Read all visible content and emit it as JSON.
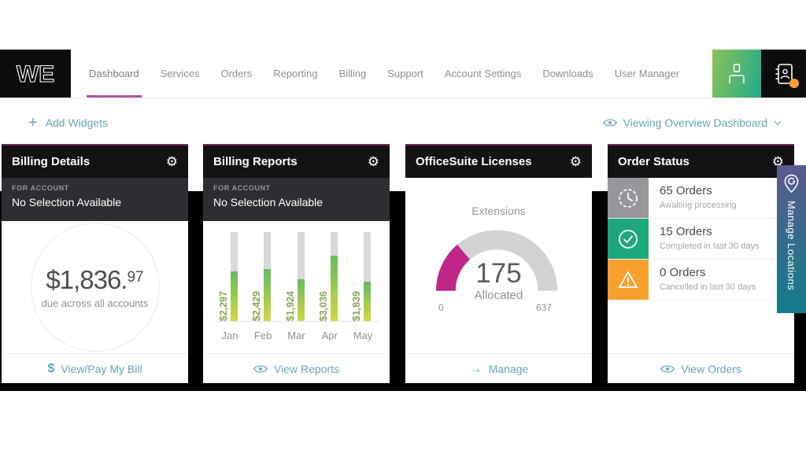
{
  "nav": {
    "logo_text": "WE",
    "items": [
      {
        "label": "Dashboard",
        "active": true
      },
      {
        "label": "Services"
      },
      {
        "label": "Orders"
      },
      {
        "label": "Reporting"
      },
      {
        "label": "Billing"
      },
      {
        "label": "Support"
      },
      {
        "label": "Account Settings"
      },
      {
        "label": "Downloads"
      },
      {
        "label": "User Manager"
      }
    ]
  },
  "toolbar": {
    "add_widgets_label": "Add Widgets",
    "viewing_label": "Viewing Overview Dashboard"
  },
  "icons": {
    "plus": "+",
    "gear": "⚙",
    "dollar": "$",
    "arrow_right": "→"
  },
  "widgets": {
    "billing_details": {
      "title": "Billing Details",
      "for_account_label": "FOR ACCOUNT",
      "account_value": "No Selection Available",
      "amount_dollars": "$1,836.",
      "amount_cents": "97",
      "amount_caption": "due across all accounts",
      "footer_label": "View/Pay My Bill"
    },
    "billing_reports": {
      "title": "Billing Reports",
      "for_account_label": "FOR ACCOUNT",
      "account_value": "No Selection Available",
      "footer_label": "View Reports",
      "chart": {
        "type": "bar",
        "categories": [
          "Jan",
          "Feb",
          "Mar",
          "Apr",
          "May"
        ],
        "values": [
          2297,
          2429,
          1924,
          3036,
          1839
        ],
        "labels": [
          "$2,297",
          "$2,429",
          "$1,924",
          "$3,036",
          "$1,839"
        ],
        "ylim": [
          0,
          4135
        ],
        "title": "",
        "xlabel": "",
        "ylabel": ""
      }
    },
    "officesuite_licenses": {
      "title": "OfficeSuite Licenses",
      "gauge_title": "Extensions",
      "value": 175,
      "value_caption": "Allocated",
      "min_label": "0",
      "max_label": "637",
      "max": 637,
      "footer_label": "Manage"
    },
    "order_status": {
      "title": "Order Status",
      "rows": [
        {
          "count": "65 Orders",
          "caption": "Awaiting processing",
          "icon": "clock-icon",
          "color": "#97979b"
        },
        {
          "count": "15 Orders",
          "caption": "Completed in last 30 days",
          "icon": "check-circle-icon",
          "color": "#1ea67d"
        },
        {
          "count": "0 Orders",
          "caption": "Cancelled in last 30 days",
          "icon": "warning-triangle-icon",
          "color": "#f7a02c"
        }
      ],
      "footer_label": "View Orders"
    }
  },
  "side_tab": {
    "label": "Manage Locations"
  },
  "colors": {
    "accent_teal": "#64a7b4",
    "active_tab_underline": "#b1569e",
    "gauge_fill": "#c02688",
    "gauge_track": "#d2d2d2",
    "bar_gradient_top": "#68b960",
    "bar_gradient_bottom": "#cdda40",
    "header_black": "#141215",
    "subheader_gray": "#2f2d31",
    "order_gray": "#97979b",
    "order_green": "#1ea67d",
    "order_orange": "#f7a02c",
    "notification_orange": "#f7a02c"
  }
}
